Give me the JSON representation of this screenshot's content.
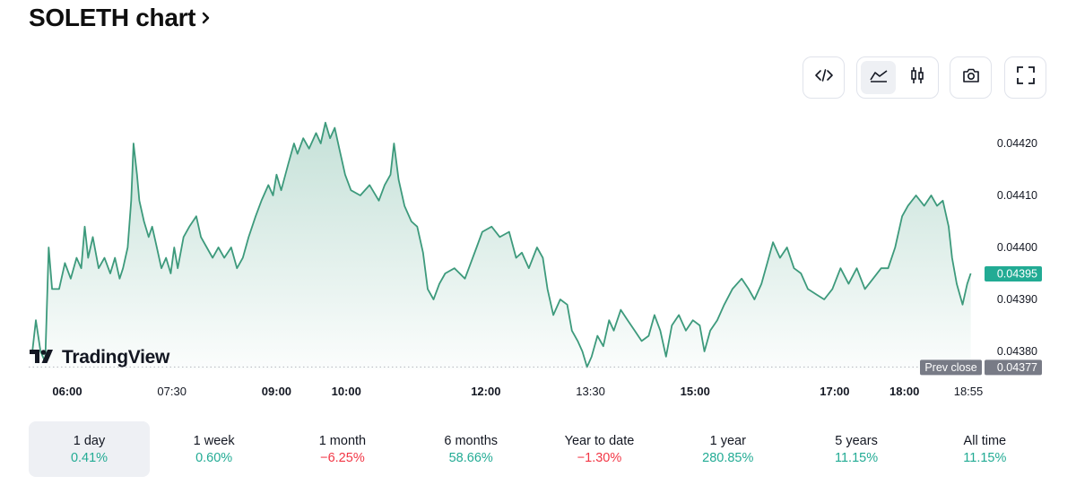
{
  "header": {
    "title": "SOLETH chart"
  },
  "toolbar": {
    "embed_icon": "code-icon",
    "area_icon": "area-chart-icon",
    "candle_icon": "candlestick-icon",
    "snapshot_icon": "camera-icon",
    "fullscreen_icon": "fullscreen-icon"
  },
  "watermark": {
    "text": "TradingView"
  },
  "colors": {
    "line": "#3d9a7c",
    "up": "#22ab94",
    "down": "#f23645",
    "prev_close_badge": "#787b86"
  },
  "chart_data": {
    "type": "area",
    "symbol": "SOLETH",
    "y_ticks": [
      "0.04420",
      "0.04410",
      "0.04400",
      "0.04390",
      "0.04380"
    ],
    "x_ticks": [
      {
        "label": "06:00",
        "bold": true
      },
      {
        "label": "07:30",
        "bold": false
      },
      {
        "label": "09:00",
        "bold": true
      },
      {
        "label": "10:00",
        "bold": true
      },
      {
        "label": "12:00",
        "bold": true
      },
      {
        "label": "13:30",
        "bold": false
      },
      {
        "label": "15:00",
        "bold": true
      },
      {
        "label": "17:00",
        "bold": true
      },
      {
        "label": "18:00",
        "bold": true
      },
      {
        "label": "18:55",
        "bold": false
      }
    ],
    "ylim": [
      0.04375,
      0.04425
    ],
    "last_price": "0.04395",
    "prev_close_label": "Prev close",
    "prev_close": "0.04377",
    "series": [
      {
        "points": [
          [
            "05:30",
            0.0438
          ],
          [
            "05:33",
            0.04386
          ],
          [
            "05:37",
            0.0438
          ],
          [
            "05:41",
            0.04378
          ],
          [
            "05:44",
            0.044
          ],
          [
            "05:47",
            0.04392
          ],
          [
            "05:53",
            0.04392
          ],
          [
            "05:58",
            0.04397
          ],
          [
            "06:03",
            0.04394
          ],
          [
            "06:08",
            0.04398
          ],
          [
            "06:12",
            0.04396
          ],
          [
            "06:15",
            0.04404
          ],
          [
            "06:18",
            0.04398
          ],
          [
            "06:22",
            0.04402
          ],
          [
            "06:27",
            0.04396
          ],
          [
            "06:32",
            0.04398
          ],
          [
            "06:37",
            0.04395
          ],
          [
            "06:41",
            0.04398
          ],
          [
            "06:45",
            0.04394
          ],
          [
            "06:48",
            0.04396
          ],
          [
            "06:52",
            0.044
          ],
          [
            "06:55",
            0.04409
          ],
          [
            "06:57",
            0.0442
          ],
          [
            "07:00",
            0.04414
          ],
          [
            "07:02",
            0.04409
          ],
          [
            "07:06",
            0.04405
          ],
          [
            "07:10",
            0.04402
          ],
          [
            "07:13",
            0.04404
          ],
          [
            "07:17",
            0.044
          ],
          [
            "07:21",
            0.04396
          ],
          [
            "07:25",
            0.04398
          ],
          [
            "07:29",
            0.04395
          ],
          [
            "07:32",
            0.044
          ],
          [
            "07:35",
            0.04396
          ],
          [
            "07:40",
            0.04402
          ],
          [
            "07:45",
            0.04404
          ],
          [
            "07:51",
            0.04406
          ],
          [
            "07:55",
            0.04402
          ],
          [
            "08:00",
            0.044
          ],
          [
            "08:05",
            0.04398
          ],
          [
            "08:10",
            0.044
          ],
          [
            "08:15",
            0.04398
          ],
          [
            "08:21",
            0.044
          ],
          [
            "08:26",
            0.04396
          ],
          [
            "08:31",
            0.04398
          ],
          [
            "08:36",
            0.04402
          ],
          [
            "08:42",
            0.04406
          ],
          [
            "08:47",
            0.04409
          ],
          [
            "08:53",
            0.04412
          ],
          [
            "08:57",
            0.0441
          ],
          [
            "09:00",
            0.04414
          ],
          [
            "09:04",
            0.04411
          ],
          [
            "09:10",
            0.04416
          ],
          [
            "09:15",
            0.0442
          ],
          [
            "09:18",
            0.04418
          ],
          [
            "09:23",
            0.04421
          ],
          [
            "09:28",
            0.04419
          ],
          [
            "09:34",
            0.04422
          ],
          [
            "09:38",
            0.0442
          ],
          [
            "09:42",
            0.04424
          ],
          [
            "09:46",
            0.04421
          ],
          [
            "09:50",
            0.04423
          ],
          [
            "09:54",
            0.04419
          ],
          [
            "09:59",
            0.04414
          ],
          [
            "10:04",
            0.04411
          ],
          [
            "10:12",
            0.0441
          ],
          [
            "10:20",
            0.04412
          ],
          [
            "10:28",
            0.04409
          ],
          [
            "10:33",
            0.04412
          ],
          [
            "10:38",
            0.04414
          ],
          [
            "10:41",
            0.0442
          ],
          [
            "10:45",
            0.04413
          ],
          [
            "10:50",
            0.04408
          ],
          [
            "10:56",
            0.04405
          ],
          [
            "11:01",
            0.04404
          ],
          [
            "11:06",
            0.04399
          ],
          [
            "11:10",
            0.04392
          ],
          [
            "11:15",
            0.0439
          ],
          [
            "11:20",
            0.04393
          ],
          [
            "11:25",
            0.04395
          ],
          [
            "11:33",
            0.04396
          ],
          [
            "11:42",
            0.04394
          ],
          [
            "11:47",
            0.04397
          ],
          [
            "11:52",
            0.044
          ],
          [
            "11:57",
            0.04403
          ],
          [
            "12:05",
            0.04404
          ],
          [
            "12:12",
            0.04402
          ],
          [
            "12:20",
            0.04403
          ],
          [
            "12:26",
            0.04398
          ],
          [
            "12:31",
            0.04399
          ],
          [
            "12:37",
            0.04396
          ],
          [
            "12:44",
            0.044
          ],
          [
            "12:49",
            0.04398
          ],
          [
            "12:53",
            0.04392
          ],
          [
            "12:58",
            0.04387
          ],
          [
            "13:04",
            0.0439
          ],
          [
            "13:10",
            0.04389
          ],
          [
            "13:14",
            0.04384
          ],
          [
            "13:19",
            0.04382
          ],
          [
            "13:23",
            0.0438
          ],
          [
            "13:27",
            0.04377
          ],
          [
            "13:31",
            0.04379
          ],
          [
            "13:36",
            0.04383
          ],
          [
            "13:41",
            0.04381
          ],
          [
            "13:46",
            0.04386
          ],
          [
            "13:50",
            0.04384
          ],
          [
            "13:56",
            0.04388
          ],
          [
            "14:02",
            0.04386
          ],
          [
            "14:08",
            0.04384
          ],
          [
            "14:14",
            0.04382
          ],
          [
            "14:20",
            0.04383
          ],
          [
            "14:25",
            0.04387
          ],
          [
            "14:30",
            0.04384
          ],
          [
            "14:35",
            0.04379
          ],
          [
            "14:40",
            0.04385
          ],
          [
            "14:46",
            0.04387
          ],
          [
            "14:52",
            0.04384
          ],
          [
            "14:58",
            0.04386
          ],
          [
            "15:04",
            0.04385
          ],
          [
            "15:08",
            0.0438
          ],
          [
            "15:13",
            0.04384
          ],
          [
            "15:19",
            0.04386
          ],
          [
            "15:25",
            0.04389
          ],
          [
            "15:32",
            0.04392
          ],
          [
            "15:40",
            0.04394
          ],
          [
            "15:46",
            0.04392
          ],
          [
            "15:51",
            0.0439
          ],
          [
            "15:57",
            0.04393
          ],
          [
            "16:02",
            0.04397
          ],
          [
            "16:07",
            0.04401
          ],
          [
            "16:13",
            0.04398
          ],
          [
            "16:19",
            0.044
          ],
          [
            "16:25",
            0.04396
          ],
          [
            "16:31",
            0.04395
          ],
          [
            "16:37",
            0.04392
          ],
          [
            "16:44",
            0.04391
          ],
          [
            "16:51",
            0.0439
          ],
          [
            "16:58",
            0.04392
          ],
          [
            "17:05",
            0.04396
          ],
          [
            "17:12",
            0.04393
          ],
          [
            "17:19",
            0.04396
          ],
          [
            "17:26",
            0.04392
          ],
          [
            "17:33",
            0.04394
          ],
          [
            "17:40",
            0.04396
          ],
          [
            "17:46",
            0.04396
          ],
          [
            "17:52",
            0.044
          ],
          [
            "17:58",
            0.04406
          ],
          [
            "18:03",
            0.04408
          ],
          [
            "18:10",
            0.0441
          ],
          [
            "18:17",
            0.04408
          ],
          [
            "18:23",
            0.0441
          ],
          [
            "18:28",
            0.04408
          ],
          [
            "18:33",
            0.04409
          ],
          [
            "18:38",
            0.04404
          ],
          [
            "18:41",
            0.04398
          ],
          [
            "18:45",
            0.04393
          ],
          [
            "18:50",
            0.04389
          ],
          [
            "18:54",
            0.04393
          ],
          [
            "18:57",
            0.04395
          ]
        ]
      }
    ]
  },
  "ranges": [
    {
      "label": "1 day",
      "change": "0.41%",
      "dir": "up"
    },
    {
      "label": "1 week",
      "change": "0.60%",
      "dir": "up"
    },
    {
      "label": "1 month",
      "change": "−6.25%",
      "dir": "down"
    },
    {
      "label": "6 months",
      "change": "58.66%",
      "dir": "up"
    },
    {
      "label": "Year to date",
      "change": "−1.30%",
      "dir": "down"
    },
    {
      "label": "1 year",
      "change": "280.85%",
      "dir": "up"
    },
    {
      "label": "5 years",
      "change": "11.15%",
      "dir": "up"
    },
    {
      "label": "All time",
      "change": "11.15%",
      "dir": "up"
    }
  ]
}
